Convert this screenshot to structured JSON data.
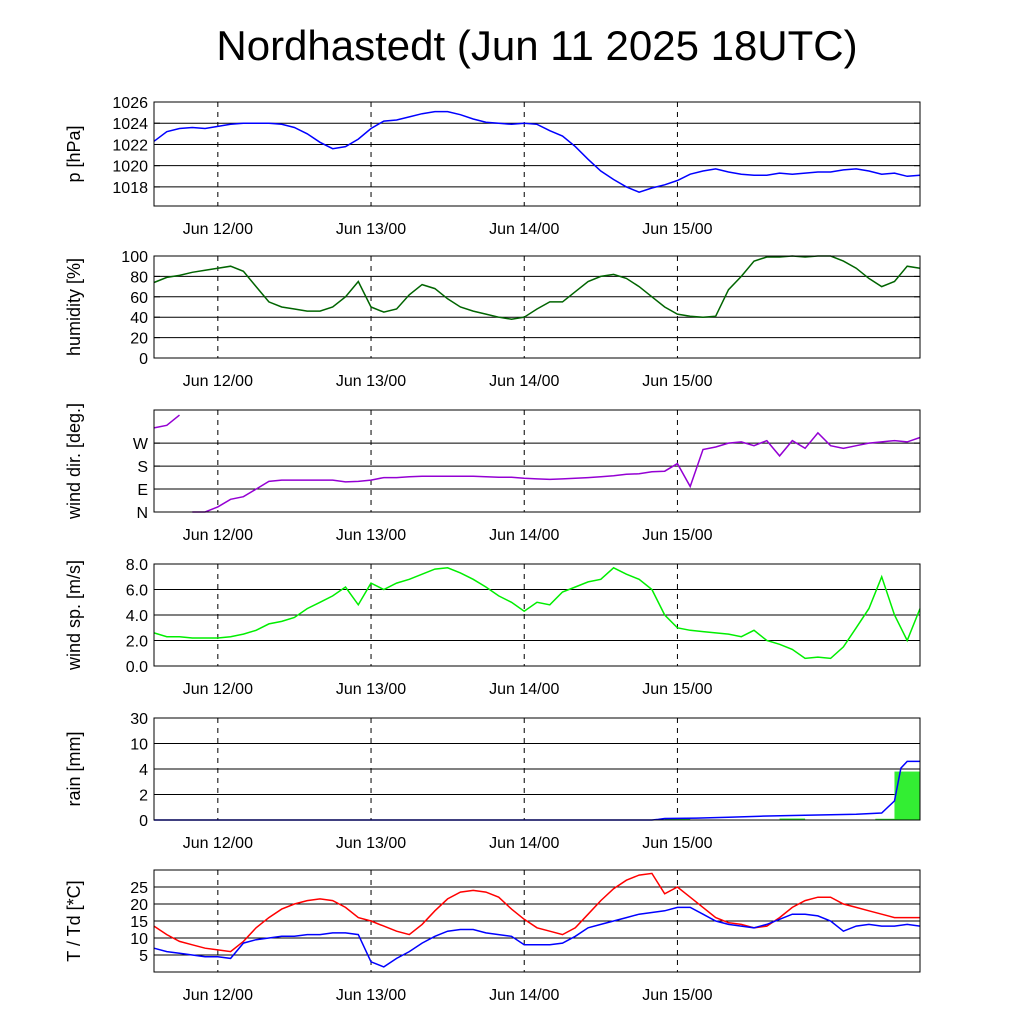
{
  "title": "Nordhastedt (Jun 11 2025 18UTC)",
  "x_tick_labels": [
    "Jun 12/00",
    "Jun 13/00",
    "Jun 14/00",
    "Jun 15/00"
  ],
  "colors": {
    "pressure": "#0000ff",
    "humidity": "#006400",
    "wind_dir": "#9400d3",
    "wind_speed": "#00ee00",
    "rain_bar": "#33ee33",
    "rain_line": "#0000ff",
    "temperature": "#ff0000",
    "dewpoint": "#0000ff"
  },
  "chart_data": [
    {
      "type": "line",
      "ylabel": "p [hPa]",
      "ylim": [
        1016.2,
        1026
      ],
      "yticks": [
        1018,
        1020,
        1022,
        1024,
        1026
      ],
      "ytick_labels": [
        "1018",
        "1020",
        "1022",
        "1024",
        "1026"
      ],
      "xlim_hours": [
        -10,
        110
      ],
      "x_hours": [
        -10,
        -8,
        -6,
        -4,
        -2,
        0,
        2,
        4,
        6,
        8,
        10,
        12,
        14,
        16,
        18,
        20,
        22,
        24,
        26,
        28,
        30,
        32,
        34,
        36,
        38,
        40,
        42,
        44,
        46,
        48,
        50,
        52,
        54,
        56,
        58,
        60,
        62,
        64,
        66,
        68,
        70,
        72,
        74,
        76,
        78,
        80,
        82,
        84,
        86,
        88,
        90,
        92,
        94,
        96,
        98,
        100,
        102,
        104,
        106,
        108,
        110
      ],
      "series": [
        {
          "values": [
            1022.3,
            1023.2,
            1023.5,
            1023.6,
            1023.5,
            1023.7,
            1023.9,
            1024.0,
            1024.0,
            1024.0,
            1023.9,
            1023.6,
            1023.0,
            1022.2,
            1021.6,
            1021.8,
            1022.5,
            1023.5,
            1024.2,
            1024.3,
            1024.6,
            1024.9,
            1025.1,
            1025.1,
            1024.8,
            1024.4,
            1024.1,
            1024.0,
            1023.9,
            1024.0,
            1023.9,
            1023.3,
            1022.8,
            1021.8,
            1020.6,
            1019.5,
            1018.7,
            1018.0,
            1017.5,
            1017.9,
            1018.2,
            1018.6,
            1019.2,
            1019.5,
            1019.7,
            1019.4,
            1019.2,
            1019.1,
            1019.1,
            1019.3,
            1019.2,
            1019.3,
            1019.4,
            1019.4,
            1019.6,
            1019.7,
            1019.5,
            1019.2,
            1019.3,
            1019.0,
            1019.1
          ]
        }
      ]
    },
    {
      "type": "line",
      "ylabel": "humidity [%]",
      "ylim": [
        0,
        100
      ],
      "yticks": [
        0,
        20,
        40,
        60,
        80,
        100
      ],
      "ytick_labels": [
        "0",
        "20",
        "40",
        "60",
        "80",
        "100"
      ],
      "xlim_hours": [
        -10,
        110
      ],
      "x_hours": [
        -10,
        -8,
        -6,
        -4,
        -2,
        0,
        2,
        4,
        6,
        8,
        10,
        12,
        14,
        16,
        18,
        20,
        22,
        24,
        26,
        28,
        30,
        32,
        34,
        36,
        38,
        40,
        42,
        44,
        46,
        48,
        50,
        52,
        54,
        56,
        58,
        60,
        62,
        64,
        66,
        68,
        70,
        72,
        74,
        76,
        78,
        80,
        82,
        84,
        86,
        88,
        90,
        92,
        94,
        96,
        98,
        100,
        102,
        104,
        106,
        108,
        110
      ],
      "series": [
        {
          "values": [
            74,
            79,
            81,
            84,
            86,
            88,
            90,
            85,
            70,
            55,
            50,
            48,
            46,
            46,
            50,
            60,
            75,
            50,
            45,
            48,
            62,
            72,
            68,
            58,
            50,
            46,
            43,
            40,
            38,
            40,
            48,
            55,
            55,
            65,
            75,
            80,
            82,
            78,
            70,
            60,
            50,
            43,
            41,
            40,
            41,
            67,
            80,
            95,
            99,
            99,
            100,
            99,
            100,
            100,
            95,
            88,
            78,
            70,
            75,
            90,
            88
          ]
        }
      ]
    },
    {
      "type": "line",
      "ylabel": "wind dir. [deg.]",
      "ylim": [
        0,
        400
      ],
      "yticks": [
        0,
        90,
        180,
        270
      ],
      "ytick_labels": [
        "N",
        "E",
        "S",
        "W"
      ],
      "xlim_hours": [
        -10,
        110
      ],
      "x_hours": [
        -10,
        -8,
        -6,
        -4,
        -2,
        0,
        2,
        4,
        6,
        8,
        10,
        12,
        14,
        16,
        18,
        20,
        22,
        24,
        26,
        28,
        30,
        32,
        34,
        36,
        38,
        40,
        42,
        44,
        46,
        48,
        50,
        52,
        54,
        56,
        58,
        60,
        62,
        64,
        66,
        68,
        70,
        72,
        74,
        76,
        78,
        80,
        82,
        84,
        86,
        88,
        90,
        92,
        94,
        96,
        98,
        100,
        102,
        104,
        106,
        108,
        110
      ],
      "series": [
        {
          "values": [
            330,
            340,
            380,
            0,
            0,
            20,
            50,
            60,
            90,
            120,
            125,
            125,
            125,
            125,
            125,
            118,
            120,
            125,
            135,
            135,
            138,
            140,
            140,
            140,
            140,
            140,
            138,
            136,
            136,
            132,
            130,
            128,
            130,
            132,
            135,
            138,
            142,
            148,
            150,
            158,
            160,
            190,
            100,
            245,
            255,
            270,
            275,
            260,
            280,
            220,
            280,
            250,
            310,
            260,
            250,
            260,
            270,
            275,
            280,
            275,
            292
          ]
        }
      ]
    },
    {
      "type": "line",
      "ylabel": "wind sp. [m/s]",
      "ylim": [
        0,
        8
      ],
      "yticks": [
        0,
        2,
        4,
        6,
        8
      ],
      "ytick_labels": [
        "0.0",
        "2.0",
        "4.0",
        "6.0",
        "8.0"
      ],
      "xlim_hours": [
        -10,
        110
      ],
      "x_hours": [
        -10,
        -8,
        -6,
        -4,
        -2,
        0,
        2,
        4,
        6,
        8,
        10,
        12,
        14,
        16,
        18,
        20,
        22,
        24,
        26,
        28,
        30,
        32,
        34,
        36,
        38,
        40,
        42,
        44,
        46,
        48,
        50,
        52,
        54,
        56,
        58,
        60,
        62,
        64,
        66,
        68,
        70,
        72,
        74,
        76,
        78,
        80,
        82,
        84,
        86,
        88,
        90,
        92,
        94,
        96,
        98,
        100,
        102,
        104,
        106,
        108,
        110
      ],
      "series": [
        {
          "values": [
            2.6,
            2.3,
            2.3,
            2.2,
            2.2,
            2.2,
            2.3,
            2.5,
            2.8,
            3.3,
            3.5,
            3.8,
            4.5,
            5.0,
            5.5,
            6.2,
            4.8,
            6.5,
            6.0,
            6.5,
            6.8,
            7.2,
            7.6,
            7.7,
            7.3,
            6.8,
            6.2,
            5.5,
            5.0,
            4.3,
            5.0,
            4.8,
            5.8,
            6.2,
            6.6,
            6.8,
            7.7,
            7.2,
            6.8,
            6.0,
            4.0,
            3.0,
            2.8,
            2.7,
            2.6,
            2.5,
            2.3,
            2.8,
            2.0,
            1.7,
            1.3,
            0.6,
            0.7,
            0.6,
            1.5,
            3.0,
            4.5,
            7.0,
            4.0,
            2.0,
            4.5
          ]
        }
      ]
    },
    {
      "type": "bar",
      "ylabel": "rain [mm]",
      "ylim": [
        0,
        30
      ],
      "yticks": [
        0,
        2,
        4,
        10,
        30
      ],
      "ytick_labels": [
        "0",
        "2",
        "4",
        "10",
        "30"
      ],
      "scale": "nonlinear",
      "xlim_hours": [
        -10,
        110
      ],
      "bars": [
        {
          "x_start": 70,
          "x_end": 74,
          "value": 0.12
        },
        {
          "x_start": 88,
          "x_end": 92,
          "value": 0.12
        },
        {
          "x_start": 103,
          "x_end": 106,
          "value": 0.1
        },
        {
          "x_start": 106,
          "x_end": 110,
          "value": 3.8
        }
      ],
      "cumulative_line": {
        "x_hours": [
          -10,
          68,
          69,
          70,
          75,
          80,
          85,
          90,
          95,
          100,
          104,
          106,
          107,
          108,
          110
        ],
        "values": [
          0,
          0,
          0.05,
          0.12,
          0.15,
          0.22,
          0.3,
          0.35,
          0.4,
          0.45,
          0.55,
          1.5,
          4.2,
          5.8,
          5.8
        ]
      }
    },
    {
      "type": "line",
      "ylabel": "T / Td [*C]",
      "ylim": [
        0,
        30
      ],
      "yticks": [
        5,
        10,
        15,
        20,
        25
      ],
      "ytick_labels": [
        "5",
        "10",
        "15",
        "20",
        "25"
      ],
      "xlim_hours": [
        -10,
        110
      ],
      "x_hours": [
        -10,
        -8,
        -6,
        -4,
        -2,
        0,
        2,
        4,
        6,
        8,
        10,
        12,
        14,
        16,
        18,
        20,
        22,
        24,
        26,
        28,
        30,
        32,
        34,
        36,
        38,
        40,
        42,
        44,
        46,
        48,
        50,
        52,
        54,
        56,
        58,
        60,
        62,
        64,
        66,
        68,
        70,
        72,
        74,
        76,
        78,
        80,
        82,
        84,
        86,
        88,
        90,
        92,
        94,
        96,
        98,
        100,
        102,
        104,
        106,
        108,
        110
      ],
      "series": [
        {
          "name": "T",
          "values": [
            13.5,
            11,
            9,
            8,
            7,
            6.5,
            6,
            9,
            13,
            16,
            18.5,
            20,
            21,
            21.5,
            21,
            19,
            16,
            15,
            13.5,
            12,
            11,
            14,
            18,
            21.5,
            23.5,
            24,
            23.5,
            22,
            18.5,
            15.5,
            13,
            12,
            11,
            13,
            17,
            21,
            24.5,
            27,
            28.5,
            29,
            23,
            25,
            22,
            19,
            16,
            14.5,
            14,
            13,
            13.5,
            16,
            19,
            21,
            22,
            22,
            20,
            19,
            18,
            17,
            16,
            16,
            16
          ]
        },
        {
          "name": "Td",
          "values": [
            7,
            6,
            5.5,
            5,
            4.5,
            4.5,
            4,
            8.5,
            9.5,
            10,
            10.5,
            10.5,
            11,
            11,
            11.5,
            11.5,
            11,
            3,
            1.5,
            4,
            6,
            8.5,
            10.5,
            12,
            12.5,
            12.5,
            11.5,
            11,
            10.5,
            8,
            8,
            8,
            8.5,
            10.5,
            13,
            14,
            15,
            16,
            17,
            17.5,
            18,
            19,
            19,
            17,
            15,
            14,
            13.5,
            13,
            14,
            15.5,
            17,
            17,
            16.5,
            15,
            12,
            13.5,
            14,
            13.5,
            13.5,
            14,
            13.5
          ]
        }
      ]
    }
  ]
}
